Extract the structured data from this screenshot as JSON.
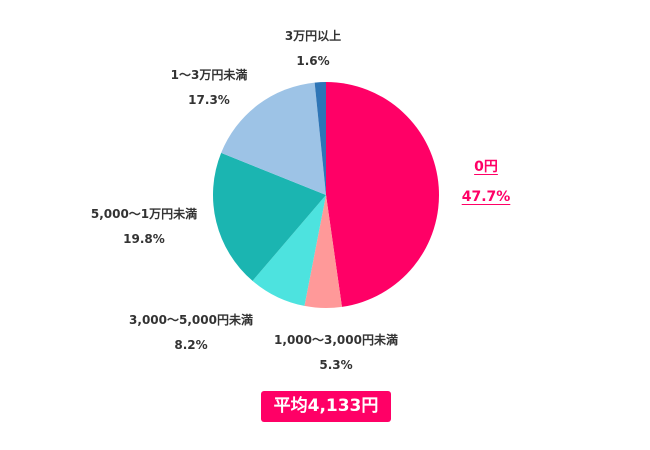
{
  "chart_data": {
    "type": "pie",
    "title": "",
    "start_angle": "12 o'clock",
    "direction": "clockwise",
    "categories": [
      "0円",
      "1,000〜3,000円未満",
      "3,000〜5,000円未満",
      "5,000〜1万円未満",
      "1〜3万円未満",
      "3万円以上"
    ],
    "values": [
      47.7,
      5.3,
      8.2,
      19.8,
      17.3,
      1.6
    ],
    "value_labels": [
      "47.7%",
      "5.3%",
      "8.2%",
      "19.8%",
      "17.3%",
      "1.6%"
    ],
    "colors": [
      "#ff0066",
      "#ff9999",
      "#4de3df",
      "#1bb5b1",
      "#9dc3e6",
      "#2e75b6"
    ],
    "legend": "none (direct labels)",
    "annotation": "平均4,133円"
  },
  "labels": [
    {
      "name": "0円",
      "pct": "47.7%"
    },
    {
      "name": "1,000〜3,000円未満",
      "pct": "5.3%"
    },
    {
      "name": "3,000〜5,000円未満",
      "pct": "8.2%"
    },
    {
      "name": "5,000〜1万円未満",
      "pct": "19.8%"
    },
    {
      "name": "1〜3万円未満",
      "pct": "17.3%"
    },
    {
      "name": "3万円以上",
      "pct": "1.6%"
    }
  ],
  "average": {
    "label": "平均4,133円"
  },
  "colors": {
    "accent": "#ff0066",
    "text": "#333333"
  }
}
